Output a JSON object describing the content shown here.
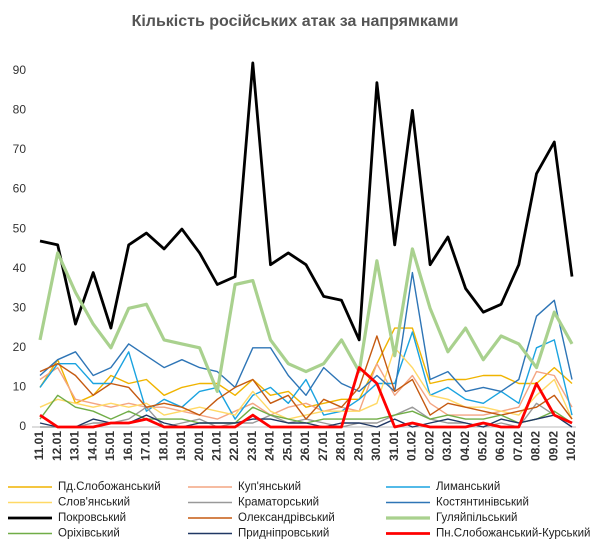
{
  "chart_data": {
    "type": "line",
    "title": "Кількість російських атак за напрямками",
    "categories": [
      "11.01",
      "12.01",
      "13.01",
      "14.01",
      "15.01",
      "16.01",
      "17.01",
      "18.01",
      "19.01",
      "20.01",
      "21.01",
      "22.01",
      "23.01",
      "24.01",
      "25.01",
      "26.01",
      "27.01",
      "28.01",
      "29.01",
      "30.01",
      "31.01",
      "01.02",
      "02.02",
      "03.02",
      "04.02",
      "05.02",
      "06.02",
      "07.02",
      "08.02",
      "09.02",
      "10.02"
    ],
    "ylim": [
      0,
      95
    ],
    "yticks": [
      0,
      10,
      20,
      30,
      40,
      50,
      60,
      70,
      80,
      90
    ],
    "grid": false,
    "series": [
      {
        "name": "Пд.Слобожанський",
        "color": "#f0b400",
        "values": [
          10,
          17,
          6,
          8,
          13,
          11,
          12,
          8,
          10,
          11,
          11,
          8,
          12,
          8,
          9,
          5,
          6,
          7,
          7,
          16,
          25,
          25,
          11,
          12,
          12,
          13,
          13,
          11,
          11,
          15,
          11
        ]
      },
      {
        "name": "Куп'янський",
        "color": "#f4a582",
        "values": [
          12,
          15,
          7,
          6,
          5,
          6,
          5,
          5,
          4,
          3,
          2,
          4,
          6,
          3,
          5,
          6,
          4,
          5,
          4,
          16,
          8,
          13,
          6,
          3,
          3,
          3,
          4,
          5,
          14,
          13,
          5
        ]
      },
      {
        "name": "Лиманський",
        "color": "#1aa3e0",
        "values": [
          10,
          16,
          16,
          11,
          11,
          19,
          4,
          7,
          5,
          9,
          10,
          2,
          8,
          10,
          6,
          12,
          3,
          4,
          7,
          11,
          11,
          24,
          8,
          10,
          7,
          6,
          9,
          6,
          20,
          22,
          3
        ]
      },
      {
        "name": "Слов'янський",
        "color": "#ffd966",
        "values": [
          5,
          7,
          6,
          5,
          6,
          5,
          6,
          3,
          4,
          5,
          4,
          3,
          9,
          4,
          2,
          3,
          4,
          4,
          4,
          6,
          20,
          15,
          8,
          7,
          5,
          5,
          4,
          3,
          8,
          12,
          2
        ]
      },
      {
        "name": "Краматорський",
        "color": "#999999",
        "values": [
          0,
          0,
          0,
          1,
          1,
          2,
          5,
          0,
          1,
          2,
          0,
          1,
          1,
          3,
          1,
          2,
          1,
          0,
          1,
          1,
          3,
          5,
          2,
          1,
          1,
          0,
          1,
          0,
          6,
          3,
          1
        ]
      },
      {
        "name": "Костянтинівський",
        "color": "#2e75b6",
        "values": [
          13,
          17,
          19,
          13,
          15,
          21,
          18,
          15,
          17,
          15,
          14,
          10,
          20,
          20,
          13,
          8,
          15,
          11,
          9,
          13,
          9,
          39,
          12,
          14,
          9,
          10,
          9,
          12,
          28,
          32,
          12
        ]
      },
      {
        "name": "Покровський",
        "color": "#000000",
        "values": [
          47,
          46,
          26,
          39,
          25,
          46,
          49,
          45,
          50,
          44,
          36,
          38,
          92,
          41,
          44,
          41,
          33,
          32,
          22,
          87,
          46,
          80,
          41,
          48,
          35,
          29,
          31,
          41,
          64,
          72,
          38
        ]
      },
      {
        "name": "Олександрівський",
        "color": "#c55a11",
        "values": [
          14,
          16,
          13,
          8,
          11,
          10,
          5,
          6,
          5,
          3,
          7,
          10,
          12,
          6,
          8,
          2,
          7,
          5,
          10,
          23,
          9,
          12,
          3,
          6,
          5,
          4,
          3,
          4,
          5,
          8,
          2
        ]
      },
      {
        "name": "Гуляйпільський",
        "color": "#a9d18e",
        "values": [
          22,
          44,
          34,
          26,
          20,
          30,
          31,
          22,
          21,
          20,
          9,
          36,
          37,
          22,
          16,
          14,
          16,
          22,
          14,
          42,
          18,
          45,
          30,
          19,
          25,
          17,
          23,
          21,
          15,
          29,
          21
        ]
      },
      {
        "name": "Оріхівський",
        "color": "#70ad47",
        "values": [
          2,
          8,
          5,
          4,
          2,
          4,
          2,
          2,
          2,
          1,
          1,
          1,
          5,
          3,
          2,
          1,
          2,
          2,
          2,
          2,
          3,
          4,
          2,
          3,
          2,
          2,
          3,
          1,
          2,
          4,
          1
        ]
      },
      {
        "name": "Придніпровський",
        "color": "#203864",
        "values": [
          1,
          0,
          0,
          2,
          1,
          1,
          3,
          1,
          0,
          1,
          1,
          1,
          2,
          2,
          1,
          1,
          0,
          1,
          1,
          0,
          2,
          0,
          1,
          2,
          1,
          0,
          2,
          1,
          2,
          3,
          0
        ]
      },
      {
        "name": "Пн.Слобожанський-Курський",
        "color": "#ff0000",
        "values": [
          3,
          0,
          0,
          0,
          1,
          1,
          2,
          0,
          0,
          0,
          0,
          0,
          3,
          0,
          0,
          0,
          0,
          0,
          15,
          11,
          0,
          1,
          0,
          0,
          0,
          1,
          0,
          0,
          11,
          3,
          1
        ]
      }
    ]
  }
}
